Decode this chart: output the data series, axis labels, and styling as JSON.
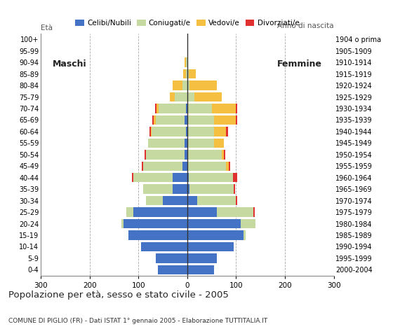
{
  "age_groups": [
    "0-4",
    "5-9",
    "10-14",
    "15-19",
    "20-24",
    "25-29",
    "30-34",
    "35-39",
    "40-44",
    "45-49",
    "50-54",
    "55-59",
    "60-64",
    "65-69",
    "70-74",
    "75-79",
    "80-84",
    "85-89",
    "90-94",
    "95-99",
    "100+"
  ],
  "birth_years": [
    "2000-2004",
    "1995-1999",
    "1990-1994",
    "1985-1989",
    "1980-1984",
    "1975-1979",
    "1970-1974",
    "1965-1969",
    "1960-1964",
    "1955-1959",
    "1950-1954",
    "1945-1949",
    "1940-1944",
    "1935-1939",
    "1930-1934",
    "1925-1929",
    "1920-1924",
    "1915-1919",
    "1910-1914",
    "1905-1909",
    "1904 o prima"
  ],
  "males": {
    "celibe": [
      60,
      65,
      95,
      120,
      130,
      110,
      50,
      30,
      30,
      10,
      5,
      5,
      3,
      5,
      3,
      0,
      0,
      0,
      0,
      0,
      0
    ],
    "coniugato": [
      0,
      0,
      0,
      0,
      5,
      15,
      35,
      60,
      80,
      80,
      80,
      75,
      70,
      60,
      55,
      25,
      10,
      3,
      2,
      0,
      0
    ],
    "vedovo": [
      0,
      0,
      0,
      0,
      0,
      0,
      0,
      0,
      0,
      0,
      0,
      0,
      2,
      3,
      5,
      10,
      20,
      5,
      3,
      0,
      0
    ],
    "divorziato": [
      0,
      0,
      0,
      0,
      0,
      0,
      0,
      0,
      3,
      3,
      3,
      0,
      3,
      3,
      3,
      0,
      0,
      0,
      0,
      0,
      0
    ]
  },
  "females": {
    "nubile": [
      55,
      60,
      95,
      115,
      110,
      60,
      20,
      5,
      3,
      0,
      0,
      0,
      0,
      0,
      0,
      0,
      0,
      0,
      0,
      0,
      0
    ],
    "coniugata": [
      0,
      0,
      0,
      5,
      30,
      75,
      80,
      90,
      90,
      80,
      70,
      55,
      55,
      55,
      50,
      15,
      5,
      3,
      0,
      0,
      0
    ],
    "vedova": [
      0,
      0,
      0,
      0,
      0,
      0,
      0,
      0,
      0,
      5,
      5,
      20,
      25,
      45,
      50,
      55,
      55,
      15,
      2,
      0,
      0
    ],
    "divorziata": [
      0,
      0,
      0,
      0,
      0,
      3,
      3,
      3,
      10,
      3,
      3,
      0,
      3,
      3,
      3,
      0,
      0,
      0,
      0,
      0,
      0
    ]
  },
  "colors": {
    "celibe": "#4472c4",
    "coniugato": "#c5d9a0",
    "vedovo": "#f5c042",
    "divorziato": "#e03030"
  },
  "xlim": 300,
  "title": "Popolazione per età, sesso e stato civile - 2005",
  "subtitle": "COMUNE DI PIGLIO (FR) - Dati ISTAT 1° gennaio 2005 - Elaborazione TUTTITALIA.IT",
  "ylabel_left": "Età",
  "ylabel_right": "Anno di nascita",
  "xlabel_left": "Maschi",
  "xlabel_right": "Femmine",
  "legend_labels": [
    "Celibi/Nubili",
    "Coniugati/e",
    "Vedovi/e",
    "Divorziati/e"
  ],
  "background_color": "#ffffff",
  "grid_color": "#aaaaaa"
}
